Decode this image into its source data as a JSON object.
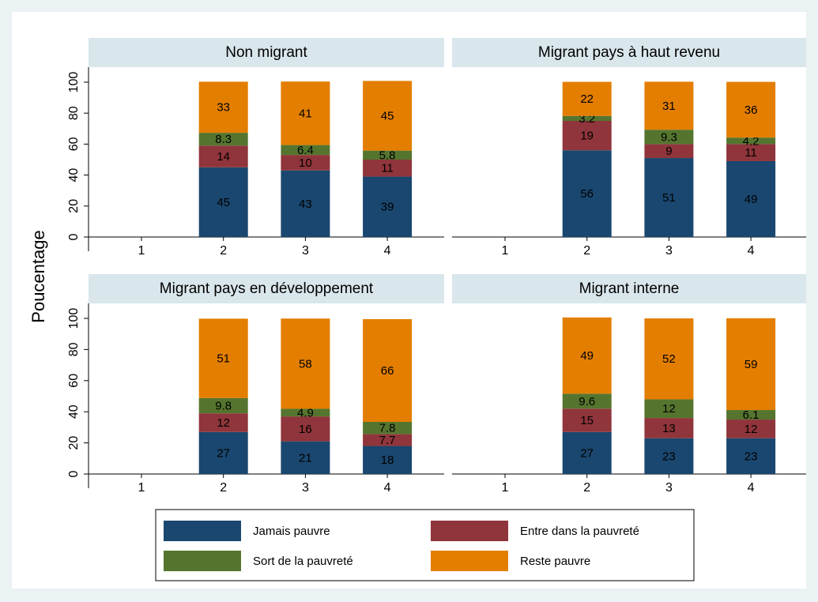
{
  "ylabel": "Poucentage",
  "chart_data": [
    {
      "type": "stacked_bar",
      "title": "Non migrant",
      "categories": [
        "1",
        "2",
        "3",
        "4"
      ],
      "ylim": [
        0,
        100
      ],
      "yticks": [
        0,
        20,
        40,
        60,
        80,
        100
      ],
      "grid": false,
      "series": [
        {
          "name": "Jamais pauvre",
          "color": "#1a476f",
          "values": [
            null,
            45,
            43,
            39
          ]
        },
        {
          "name": "Entre dans la pauvreté",
          "color": "#90353b",
          "values": [
            null,
            14,
            10,
            11
          ]
        },
        {
          "name": "Sort de la pauvreté",
          "color": "#55752f",
          "values": [
            null,
            8.3,
            6.4,
            5.8
          ]
        },
        {
          "name": "Reste pauvre",
          "color": "#e37e00",
          "values": [
            null,
            33,
            41,
            45
          ]
        }
      ]
    },
    {
      "type": "stacked_bar",
      "title": "Migrant pays à haut revenu",
      "categories": [
        "1",
        "2",
        "3",
        "4"
      ],
      "ylim": [
        0,
        100
      ],
      "yticks": [
        0,
        20,
        40,
        60,
        80,
        100
      ],
      "grid": false,
      "series": [
        {
          "name": "Jamais pauvre",
          "color": "#1a476f",
          "values": [
            null,
            56,
            51,
            49
          ]
        },
        {
          "name": "Entre dans la pauvreté",
          "color": "#90353b",
          "values": [
            null,
            19,
            9,
            11
          ]
        },
        {
          "name": "Sort de la pauvreté",
          "color": "#55752f",
          "values": [
            null,
            3.2,
            9.3,
            4.2
          ]
        },
        {
          "name": "Reste pauvre",
          "color": "#e37e00",
          "values": [
            null,
            22,
            31,
            36
          ]
        }
      ]
    },
    {
      "type": "stacked_bar",
      "title": "Migrant pays en développement",
      "categories": [
        "1",
        "2",
        "3",
        "4"
      ],
      "ylim": [
        0,
        100
      ],
      "yticks": [
        0,
        20,
        40,
        60,
        80,
        100
      ],
      "grid": false,
      "series": [
        {
          "name": "Jamais pauvre",
          "color": "#1a476f",
          "values": [
            null,
            27,
            21,
            18
          ]
        },
        {
          "name": "Entre dans la pauvreté",
          "color": "#90353b",
          "values": [
            null,
            12,
            16,
            7.7
          ]
        },
        {
          "name": "Sort de la pauvreté",
          "color": "#55752f",
          "values": [
            null,
            9.8,
            4.9,
            7.8
          ]
        },
        {
          "name": "Reste pauvre",
          "color": "#e37e00",
          "values": [
            null,
            51,
            58,
            66
          ]
        }
      ]
    },
    {
      "type": "stacked_bar",
      "title": "Migrant interne",
      "categories": [
        "1",
        "2",
        "3",
        "4"
      ],
      "ylim": [
        0,
        100
      ],
      "yticks": [
        0,
        20,
        40,
        60,
        80,
        100
      ],
      "grid": false,
      "series": [
        {
          "name": "Jamais pauvre",
          "color": "#1a476f",
          "values": [
            null,
            27,
            23,
            23
          ]
        },
        {
          "name": "Entre dans la pauvreté",
          "color": "#90353b",
          "values": [
            null,
            15,
            13,
            12
          ]
        },
        {
          "name": "Sort de la pauvreté",
          "color": "#55752f",
          "values": [
            null,
            9.6,
            12,
            6.1
          ]
        },
        {
          "name": "Reste pauvre",
          "color": "#e37e00",
          "values": [
            null,
            49,
            52,
            59
          ]
        }
      ]
    }
  ]
}
